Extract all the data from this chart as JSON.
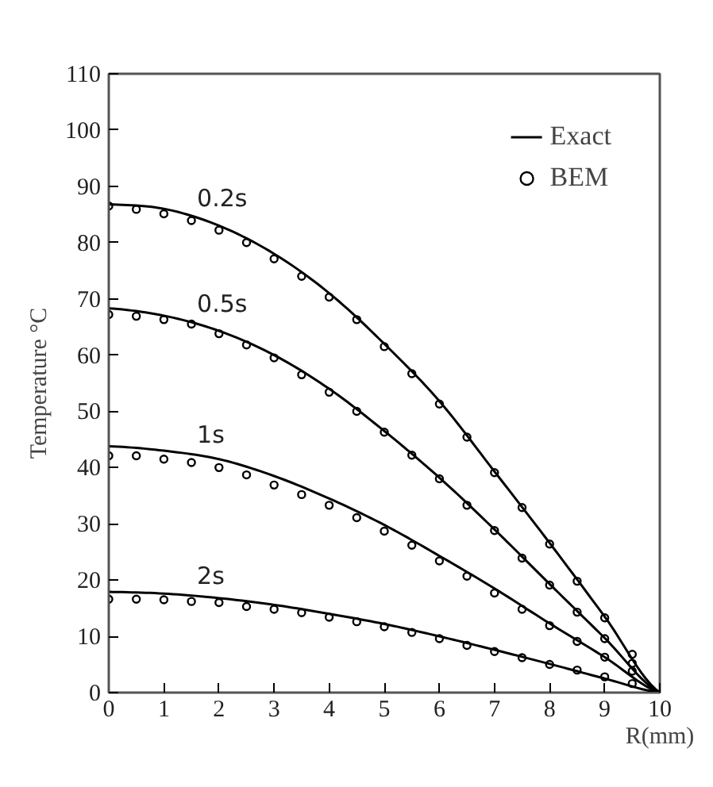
{
  "chart_data": {
    "type": "line",
    "xlabel": "R(mm)",
    "ylabel": "Temperature °C",
    "xlim": [
      0,
      10
    ],
    "ylim": [
      0,
      110
    ],
    "xticks": [
      0,
      1,
      2,
      3,
      4,
      5,
      6,
      7,
      8,
      9,
      10
    ],
    "yticks": [
      0,
      10,
      20,
      30,
      40,
      50,
      60,
      70,
      80,
      90,
      100,
      110
    ],
    "grid": false,
    "legend": "top right",
    "line_style": "solid",
    "series": [
      {
        "name": "Exact",
        "color": "#000000",
        "marker": "none",
        "x": [
          0,
          1,
          2,
          3,
          4,
          5,
          6,
          7,
          8,
          9,
          10
        ],
        "values": [
          86.8,
          86,
          83,
          78,
          71,
          62,
          51.8,
          39.3,
          26.6,
          13.5,
          0
        ]
      },
      {
        "color": "#000000",
        "marker": "none",
        "x": [
          0,
          1,
          2,
          3,
          4,
          5,
          6,
          7,
          8,
          9,
          10
        ],
        "values": [
          68.3,
          67,
          64.3,
          60,
          54,
          46.5,
          38.2,
          29,
          19.3,
          9.7,
          0
        ]
      },
      {
        "color": "#000000",
        "marker": "none",
        "x": [
          0,
          1,
          2,
          3,
          4,
          5,
          6,
          7,
          8,
          9,
          10
        ],
        "values": [
          43.8,
          43,
          41.5,
          38.5,
          34.5,
          29.8,
          24.3,
          18.5,
          12.3,
          6.3,
          0
        ]
      },
      {
        "color": "#000000",
        "marker": "none",
        "x": [
          0,
          1,
          2,
          3,
          4,
          5,
          6,
          7,
          8,
          9,
          10
        ],
        "values": [
          17.9,
          17.6,
          16.8,
          15.6,
          14,
          12.2,
          10,
          7.6,
          5.1,
          2.5,
          0
        ]
      },
      {
        "name": "BEM",
        "type": "scatter",
        "color": "#000000",
        "marker": "circle",
        "x": [
          0,
          0.5,
          1,
          1.5,
          2,
          2.5,
          3,
          3.5,
          4,
          4.5,
          5,
          5.5,
          6,
          6.5,
          7,
          7.5,
          8,
          8.5,
          9,
          9.5
        ],
        "values": [
          86.5,
          85.9,
          85.1,
          83.9,
          82.2,
          80,
          77.1,
          74,
          70.3,
          66.3,
          61.5,
          56.7,
          51.3,
          45.4,
          39.1,
          32.9,
          26.4,
          19.8,
          13.3,
          6.8
        ]
      },
      {
        "type": "scatter",
        "color": "#000000",
        "marker": "circle",
        "x": [
          0,
          0.5,
          1,
          1.5,
          2,
          2.5,
          3,
          3.5,
          4,
          4.5,
          5,
          5.5,
          6,
          6.5,
          7,
          7.5,
          8,
          8.5,
          9,
          9.5
        ],
        "values": [
          67.2,
          66.9,
          66.3,
          65.5,
          63.8,
          61.8,
          59.5,
          56.5,
          53.4,
          50,
          46.3,
          42.2,
          38,
          33.3,
          28.8,
          23.9,
          19.1,
          14.3,
          9.6,
          5.2
        ]
      },
      {
        "type": "scatter",
        "color": "#000000",
        "marker": "circle",
        "x": [
          0,
          0.5,
          1,
          1.5,
          2,
          2.5,
          3,
          3.5,
          4,
          4.5,
          5,
          5.5,
          6,
          6.5,
          7,
          7.5,
          8,
          8.5,
          9,
          9.5
        ],
        "values": [
          42.1,
          42.1,
          41.5,
          40.9,
          40,
          38.7,
          36.9,
          35.2,
          33.3,
          31.1,
          28.7,
          26.2,
          23.4,
          20.7,
          17.7,
          14.8,
          11.9,
          9.1,
          6.3,
          3.8
        ]
      },
      {
        "type": "scatter",
        "color": "#000000",
        "marker": "circle",
        "x": [
          0,
          0.5,
          1,
          1.5,
          2,
          2.5,
          3,
          3.5,
          4,
          4.5,
          5,
          5.5,
          6,
          6.5,
          7,
          7.5,
          8,
          8.5,
          9,
          9.5
        ],
        "values": [
          16.6,
          16.6,
          16.5,
          16.2,
          16,
          15.3,
          14.8,
          14.2,
          13.4,
          12.6,
          11.7,
          10.7,
          9.6,
          8.4,
          7.3,
          6.2,
          5,
          4,
          2.8,
          1.6
        ]
      }
    ],
    "annotations": [
      "0.2s",
      "0.5s",
      "1s",
      "2s"
    ]
  }
}
